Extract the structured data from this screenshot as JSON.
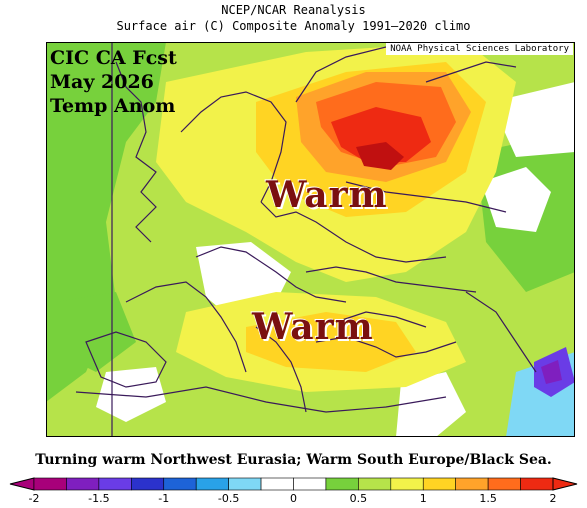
{
  "header": {
    "line1": "NCEP/NCAR Reanalysis",
    "line2": "Surface air (C) Composite Anomaly 1991–2020 climo"
  },
  "map": {
    "credit": "NOAA Physical Sciences Laboratory",
    "overlay_title": [
      "CIC CA Fcst",
      "May 2026",
      "Temp Anom"
    ],
    "labels": [
      "Warm",
      "Warm"
    ]
  },
  "caption": "Turning warm Northwest Eurasia; Warm South Europe/Black Sea.",
  "legend": {
    "ticks": [
      "-2",
      "-1.5",
      "-1",
      "-0.5",
      "0",
      "0.5",
      "1",
      "1.5",
      "2"
    ],
    "colors": [
      "#a8007a",
      "#7f1fbf",
      "#6a3ce6",
      "#2b32cc",
      "#1d63d8",
      "#29a2e8",
      "#7fd8f5",
      "#ffffff",
      "#ffffff",
      "#77d13c",
      "#b6e34a",
      "#f2f24a",
      "#ffd423",
      "#ffa32a",
      "#ff6c1c",
      "#ee2a12"
    ]
  }
}
